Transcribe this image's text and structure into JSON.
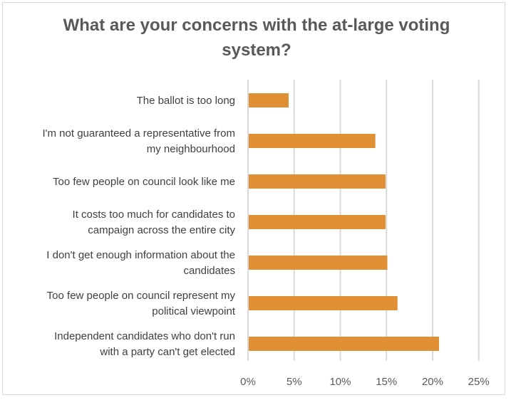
{
  "chart_data": {
    "type": "bar",
    "orientation": "horizontal",
    "title": "What are your concerns with the at-large voting system?",
    "categories": [
      [
        "The ballot is too long"
      ],
      [
        "I'm not guaranteed a representative from",
        "my neighbourhood"
      ],
      [
        "Too few people on council look like me"
      ],
      [
        "It costs too much for candidates to",
        "campaign across the entire city"
      ],
      [
        "I don't get enough information about the",
        "candidates"
      ],
      [
        "Too few people on council represent my",
        "political viewpoint"
      ],
      [
        "Independent candidates who don't run",
        "with a party can't get elected"
      ]
    ],
    "values": [
      4.4,
      13.8,
      14.9,
      14.9,
      15.1,
      16.2,
      20.7
    ],
    "xlim": [
      0,
      25
    ],
    "x_ticks": [
      "0%",
      "5%",
      "10%",
      "15%",
      "20%",
      "25%"
    ],
    "grid": "vertical",
    "bar_color": "#E08F35",
    "grid_color": "#D9D9D9"
  }
}
